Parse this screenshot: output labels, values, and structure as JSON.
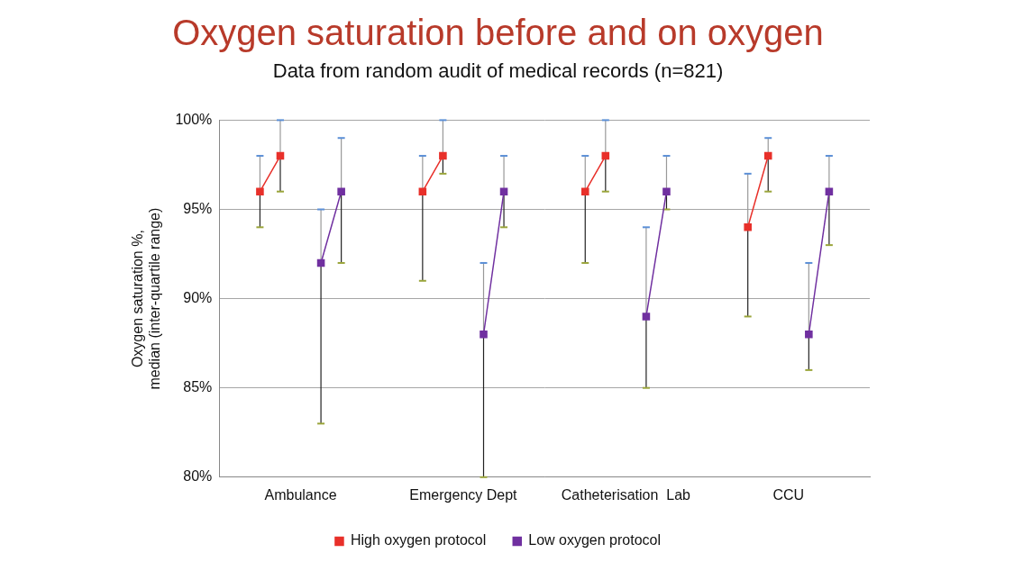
{
  "chart_data": {
    "type": "line",
    "title": "Oxygen saturation before and on oxygen",
    "subtitle": "Data from random audit of medical records (n=821)",
    "y_label": [
      "Oxygen saturation %,",
      "median (inter-quartile range)"
    ],
    "categories": [
      "Ambulance",
      "Emergency Dept",
      "Catheterisation  Lab",
      "CCU"
    ],
    "series": [
      {
        "name": "High oxygen protocol",
        "color": "#e8302a",
        "marker": "square",
        "before": {
          "values": [
            96,
            96,
            96,
            94
          ],
          "iqr": [
            [
              94,
              98
            ],
            [
              91,
              98
            ],
            [
              92,
              98
            ],
            [
              89,
              97
            ]
          ]
        },
        "on": {
          "values": [
            98,
            98,
            98,
            98
          ],
          "iqr": [
            [
              96,
              100
            ],
            [
              97,
              100
            ],
            [
              96,
              100
            ],
            [
              96,
              99
            ]
          ]
        }
      },
      {
        "name": "Low oxygen protocol",
        "color": "#7030a0",
        "marker": "square",
        "before": {
          "values": [
            92,
            88,
            89,
            88
          ],
          "iqr": [
            [
              83,
              95
            ],
            [
              80,
              92
            ],
            [
              85,
              94
            ],
            [
              86,
              92
            ]
          ]
        },
        "on": {
          "values": [
            96,
            96,
            96,
            96
          ],
          "iqr": [
            [
              92,
              99
            ],
            [
              94,
              98
            ],
            [
              95,
              98
            ],
            [
              93,
              98
            ]
          ]
        }
      }
    ],
    "ylim": [
      80,
      100
    ],
    "yticks": [
      {
        "value": 80,
        "label": "80%"
      },
      {
        "value": 85,
        "label": "85%"
      },
      {
        "value": 90,
        "label": "90%"
      },
      {
        "value": 95,
        "label": "95%"
      },
      {
        "value": 100,
        "label": "100%"
      }
    ],
    "grid": true,
    "legend": "bottom"
  }
}
